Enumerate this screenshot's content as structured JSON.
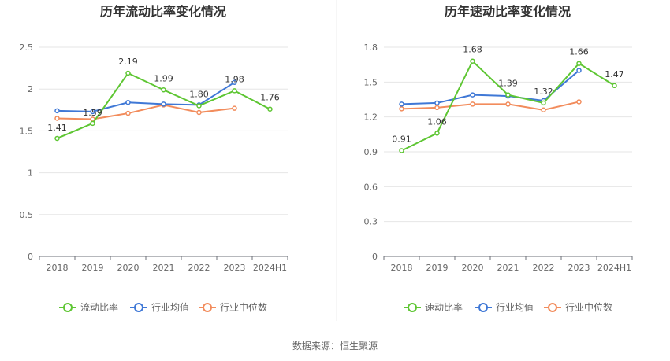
{
  "source_text": "数据来源：恒生聚源",
  "chart_data": [
    {
      "type": "line",
      "title": "历年流动比率变化情况",
      "categories": [
        "2018",
        "2019",
        "2020",
        "2021",
        "2022",
        "2023",
        "2024H1"
      ],
      "ylim": [
        0,
        2.5
      ],
      "yticks": [
        "0",
        "0.5",
        "1",
        "1.5",
        "2",
        "2.5"
      ],
      "grid": true,
      "legend_position": "bottom",
      "series": [
        {
          "name": "流动比率",
          "color": "#5ec633",
          "values": [
            1.41,
            1.59,
            2.19,
            1.99,
            1.8,
            1.98,
            1.76
          ],
          "labels": [
            "1.41",
            "1.59",
            "2.19",
            "1.99",
            "1.80",
            "1.98",
            "1.76"
          ]
        },
        {
          "name": "行业均值",
          "color": "#3f78d6",
          "values": [
            1.74,
            1.73,
            1.84,
            1.82,
            1.81,
            2.08,
            null
          ]
        },
        {
          "name": "行业中位数",
          "color": "#f28c5c",
          "values": [
            1.65,
            1.64,
            1.71,
            1.81,
            1.72,
            1.77,
            null
          ]
        }
      ]
    },
    {
      "type": "line",
      "title": "历年速动比率变化情况",
      "categories": [
        "2018",
        "2019",
        "2020",
        "2021",
        "2022",
        "2023",
        "2024H1"
      ],
      "ylim": [
        0,
        1.8
      ],
      "yticks": [
        "0",
        "0.3",
        "0.6",
        "0.9",
        "1.2",
        "1.5",
        "1.8"
      ],
      "grid": true,
      "legend_position": "bottom",
      "series": [
        {
          "name": "速动比率",
          "color": "#5ec633",
          "values": [
            0.91,
            1.06,
            1.68,
            1.39,
            1.32,
            1.66,
            1.47
          ],
          "labels": [
            "0.91",
            "1.06",
            "1.68",
            "1.39",
            "1.32",
            "1.66",
            "1.47"
          ]
        },
        {
          "name": "行业均值",
          "color": "#3f78d6",
          "values": [
            1.31,
            1.32,
            1.39,
            1.38,
            1.34,
            1.6,
            null
          ]
        },
        {
          "name": "行业中位数",
          "color": "#f28c5c",
          "values": [
            1.27,
            1.28,
            1.31,
            1.31,
            1.26,
            1.33,
            null
          ]
        }
      ]
    }
  ]
}
